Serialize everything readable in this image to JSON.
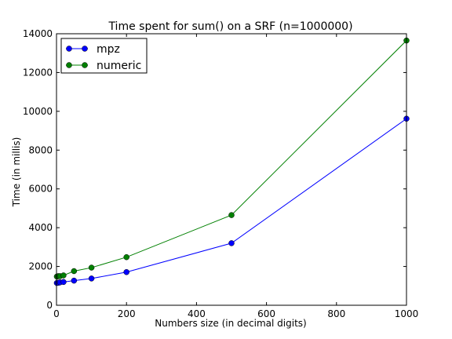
{
  "chart_data": {
    "type": "line",
    "title": "Time spent for sum() on a SRF (n=1000000)",
    "xlabel": "Numbers size (in decimal digits)",
    "ylabel": "Time (in millis)",
    "xlim": [
      0,
      1000
    ],
    "ylim": [
      0,
      14000
    ],
    "xticks": [
      0,
      200,
      400,
      600,
      800,
      1000
    ],
    "yticks": [
      0,
      2000,
      4000,
      6000,
      8000,
      10000,
      12000,
      14000
    ],
    "x": [
      1,
      5,
      10,
      20,
      50,
      100,
      200,
      500,
      1000
    ],
    "series": [
      {
        "name": "mpz",
        "color": "#0000ff",
        "values": [
          1150,
          1160,
          1180,
          1200,
          1270,
          1380,
          1710,
          3200,
          9620
        ]
      },
      {
        "name": "numeric",
        "color": "#008000",
        "values": [
          1480,
          1500,
          1500,
          1540,
          1760,
          1940,
          2480,
          4650,
          13650
        ]
      }
    ],
    "grid": false,
    "legend_position": "top-left"
  }
}
